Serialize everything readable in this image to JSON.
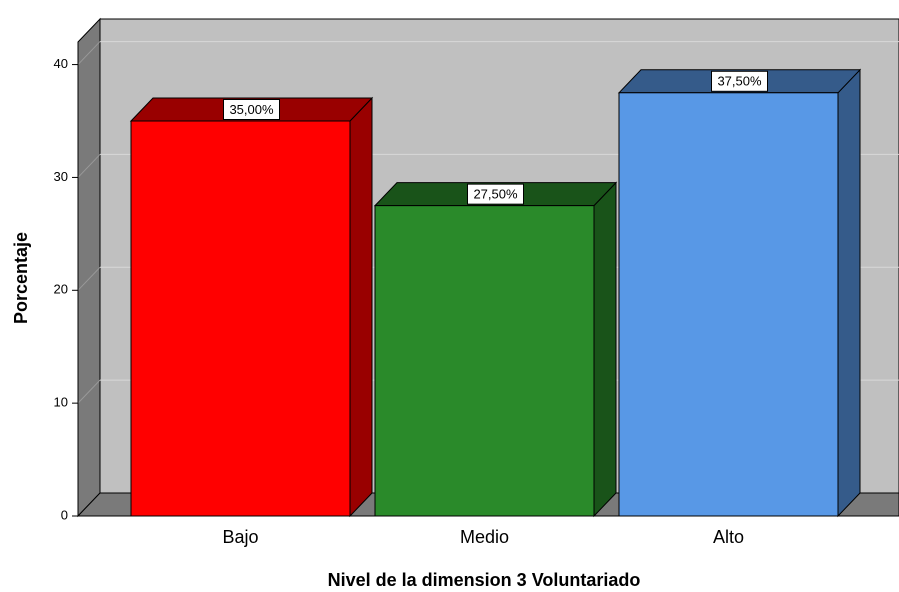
{
  "chart_data": {
    "type": "bar3d",
    "categories": [
      "Bajo",
      "Medio",
      "Alto"
    ],
    "values": [
      35,
      27.5,
      37.5
    ],
    "value_labels": [
      "35,00%",
      "27,50%",
      "37,50%"
    ],
    "colors": [
      "#ff0000",
      "#2a8a2a",
      "#5898e6"
    ],
    "x_label": "Nivel de la dimension 3 Voluntariado",
    "y_label": "Porcentaje",
    "ylim": [
      0,
      42
    ],
    "yticks": [
      0,
      10,
      20,
      30,
      40
    ],
    "grid": true
  }
}
